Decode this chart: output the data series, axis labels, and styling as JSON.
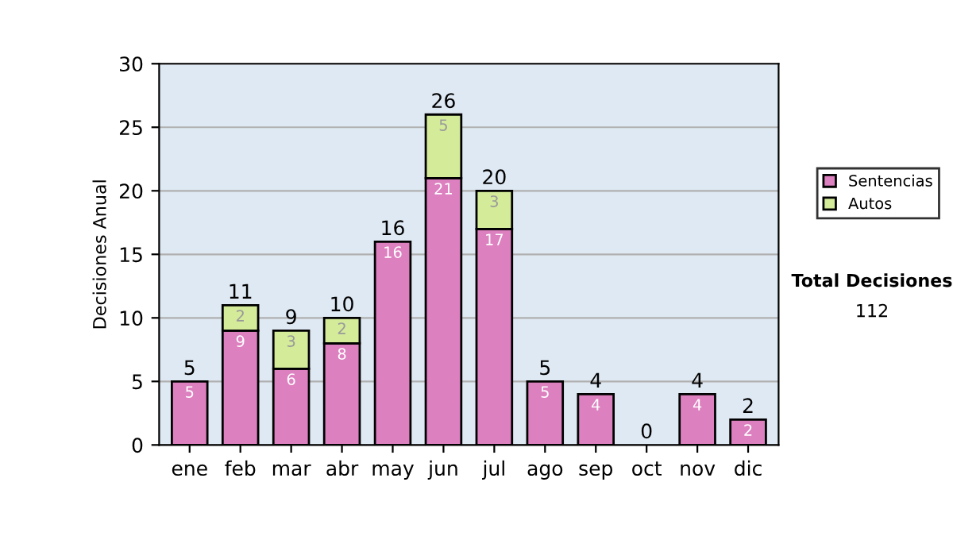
{
  "chart_data": {
    "type": "bar",
    "stacked": true,
    "ylabel": "Decisiones Anual",
    "categories": [
      "ene",
      "feb",
      "mar",
      "abr",
      "may",
      "jun",
      "jul",
      "ago",
      "sep",
      "oct",
      "nov",
      "dic"
    ],
    "series": [
      {
        "name": "Sentencias",
        "color": "#dd80c0",
        "values": [
          5,
          9,
          6,
          8,
          16,
          21,
          17,
          5,
          4,
          0,
          4,
          2
        ],
        "value_labels": [
          "5",
          "9",
          "6",
          "8",
          "16",
          "21",
          "17",
          "5",
          "4",
          null,
          "4",
          "2"
        ]
      },
      {
        "name": "Autos",
        "color": "#d4eb9a",
        "values": [
          0,
          2,
          3,
          2,
          0,
          5,
          3,
          0,
          0,
          0,
          0,
          0
        ],
        "value_labels": [
          null,
          "2",
          "3",
          "2",
          null,
          "5",
          "3",
          null,
          null,
          null,
          null,
          null
        ]
      }
    ],
    "totals": [
      "5",
      "11",
      "9",
      "10",
      "16",
      "26",
      "20",
      "5",
      "4",
      "0",
      "4",
      "2"
    ],
    "ylim": [
      0,
      30
    ],
    "yticks": [
      0,
      5,
      10,
      15,
      20,
      25,
      30
    ],
    "grid": "y",
    "legend": "right",
    "annotations": [
      "Total Decisiones",
      "112"
    ]
  }
}
